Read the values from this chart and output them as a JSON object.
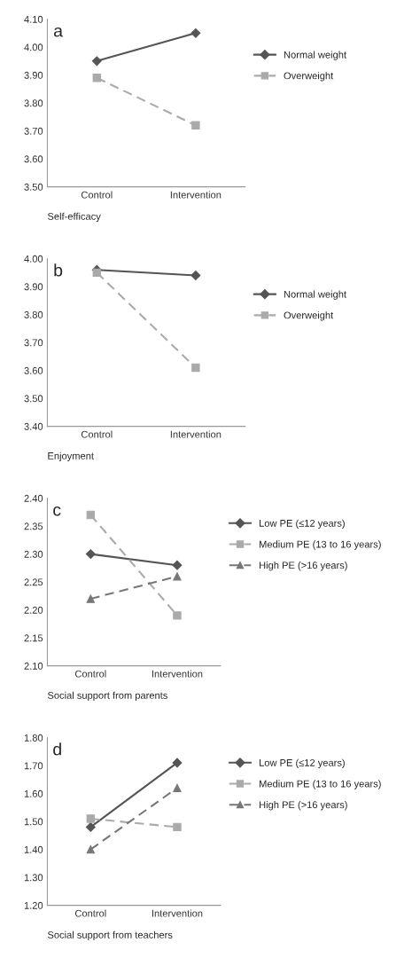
{
  "chart_data": [
    {
      "type": "line",
      "title": "a",
      "xlabel": "Self-efficacy",
      "categories": [
        "Control",
        "Intervention"
      ],
      "ylim": [
        3.5,
        4.1
      ],
      "yticks": [
        {
          "value": 3.5,
          "label": "3.50"
        },
        {
          "value": 3.6,
          "label": "3.60"
        },
        {
          "value": 3.7,
          "label": "3.70"
        },
        {
          "value": 3.8,
          "label": "3.80"
        },
        {
          "value": 3.9,
          "label": "3.90"
        },
        {
          "value": 4.0,
          "label": "4.00"
        },
        {
          "value": 4.1,
          "label": "4.10"
        }
      ],
      "grid": false,
      "legend": "right",
      "series": [
        {
          "name": "Normal weight",
          "color": "#555555",
          "marker": "diamond",
          "line_style": "solid",
          "values": [
            3.95,
            4.05
          ]
        },
        {
          "name": "Overweight",
          "color": "#aaaaaa",
          "marker": "square",
          "line_style": "dashed",
          "values": [
            3.89,
            3.72
          ]
        }
      ]
    },
    {
      "type": "line",
      "title": "b",
      "xlabel": "Enjoyment",
      "categories": [
        "Control",
        "Intervention"
      ],
      "ylim": [
        3.4,
        4.0
      ],
      "yticks": [
        {
          "value": 3.4,
          "label": "3.40"
        },
        {
          "value": 3.5,
          "label": "3.50"
        },
        {
          "value": 3.6,
          "label": "3.60"
        },
        {
          "value": 3.7,
          "label": "3.70"
        },
        {
          "value": 3.8,
          "label": "3.80"
        },
        {
          "value": 3.9,
          "label": "3.90"
        },
        {
          "value": 4.0,
          "label": "4.00"
        }
      ],
      "grid": false,
      "legend": "right",
      "series": [
        {
          "name": "Normal weight",
          "color": "#555555",
          "marker": "diamond",
          "line_style": "solid",
          "values": [
            3.96,
            3.94
          ]
        },
        {
          "name": "Overweight",
          "color": "#aaaaaa",
          "marker": "square",
          "line_style": "dashed",
          "values": [
            3.95,
            3.61
          ]
        }
      ]
    },
    {
      "type": "line",
      "title": "c",
      "xlabel": "Social support from parents",
      "categories": [
        "Control",
        "Intervention"
      ],
      "ylim": [
        2.1,
        2.4
      ],
      "yticks": [
        {
          "value": 2.1,
          "label": "2.10"
        },
        {
          "value": 2.15,
          "label": "2.15"
        },
        {
          "value": 2.2,
          "label": "2.20"
        },
        {
          "value": 2.25,
          "label": "2.25"
        },
        {
          "value": 2.3,
          "label": "2.30"
        },
        {
          "value": 2.35,
          "label": "2.35"
        },
        {
          "value": 2.4,
          "label": "2.40"
        }
      ],
      "grid": false,
      "legend": "right",
      "series": [
        {
          "name": "Low PE (≤12 years)",
          "color": "#555555",
          "marker": "diamond",
          "line_style": "solid",
          "values": [
            2.3,
            2.28
          ]
        },
        {
          "name": "Medium PE (13 to 16 years)",
          "color": "#aaaaaa",
          "marker": "square",
          "line_style": "dashed",
          "values": [
            2.37,
            2.19
          ]
        },
        {
          "name": "High PE (>16 years)",
          "color": "#777777",
          "marker": "triangle",
          "line_style": "dashed",
          "values": [
            2.22,
            2.26
          ]
        }
      ]
    },
    {
      "type": "line",
      "title": "d",
      "xlabel": "Social support from teachers",
      "categories": [
        "Control",
        "Intervention"
      ],
      "ylim": [
        1.2,
        1.8
      ],
      "yticks": [
        {
          "value": 1.2,
          "label": "1.20"
        },
        {
          "value": 1.3,
          "label": "1.30"
        },
        {
          "value": 1.4,
          "label": "1.40"
        },
        {
          "value": 1.5,
          "label": "1.50"
        },
        {
          "value": 1.6,
          "label": "1.60"
        },
        {
          "value": 1.7,
          "label": "1.70"
        },
        {
          "value": 1.8,
          "label": "1.80"
        }
      ],
      "grid": false,
      "legend": "right",
      "series": [
        {
          "name": "Low PE (≤12 years)",
          "color": "#555555",
          "marker": "diamond",
          "line_style": "solid",
          "values": [
            1.48,
            1.71
          ]
        },
        {
          "name": "Medium PE (13 to 16 years)",
          "color": "#aaaaaa",
          "marker": "square",
          "line_style": "dashed",
          "values": [
            1.51,
            1.48
          ]
        },
        {
          "name": "High PE (>16 years)",
          "color": "#777777",
          "marker": "triangle",
          "line_style": "dashed",
          "values": [
            1.4,
            1.62
          ]
        }
      ]
    }
  ]
}
